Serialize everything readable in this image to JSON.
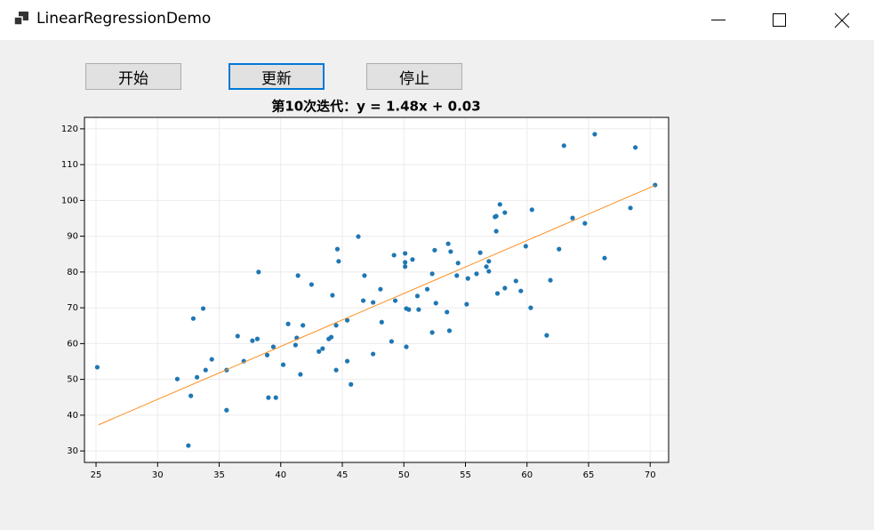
{
  "window": {
    "title": "LinearRegressionDemo"
  },
  "buttons": [
    "开始",
    "更新",
    "停止"
  ],
  "chart_data": {
    "type": "scatter",
    "title": "第10次迭代：y = 1.48x + 0.03",
    "xlim": [
      24.06,
      71.5
    ],
    "ylim": [
      26.8,
      123.2
    ],
    "xticks": [
      25,
      30,
      35,
      40,
      45,
      50,
      55,
      60,
      65,
      70
    ],
    "yticks": [
      30,
      40,
      50,
      60,
      70,
      80,
      90,
      100,
      110,
      120
    ],
    "grid": true,
    "series": [
      {
        "type": "scatter",
        "color": "#1f77b4",
        "x": [
          25.1,
          31.6,
          32.5,
          32.7,
          32.9,
          33.2,
          33.7,
          33.9,
          34.4,
          35.6,
          35.6,
          36.5,
          37.0,
          37.7,
          38.1,
          38.2,
          38.9,
          39.0,
          39.4,
          39.6,
          40.2,
          40.6,
          41.2,
          41.3,
          41.4,
          41.6,
          41.8,
          42.5,
          43.1,
          43.4,
          43.9,
          44.1,
          44.2,
          44.5,
          44.5,
          44.6,
          44.7,
          45.4,
          45.4,
          45.7,
          46.3,
          46.7,
          46.8,
          47.5,
          47.5,
          48.1,
          48.2,
          49.0,
          49.2,
          49.3,
          50.1,
          50.1,
          50.1,
          50.2,
          50.2,
          50.4,
          50.7,
          51.1,
          51.2,
          51.9,
          52.3,
          52.3,
          52.5,
          52.6,
          53.5,
          53.6,
          53.7,
          53.8,
          54.3,
          54.4,
          55.1,
          55.2,
          55.9,
          56.2,
          56.7,
          56.9,
          56.9,
          57.4,
          57.5,
          57.5,
          57.6,
          57.8,
          58.2,
          58.2,
          59.1,
          59.5,
          59.9,
          60.3,
          60.4,
          61.6,
          61.9,
          62.6,
          63.0,
          63.7,
          64.7,
          65.5,
          66.3,
          68.4,
          68.8,
          70.4
        ],
        "values": [
          53.4,
          50.1,
          31.5,
          45.4,
          67.0,
          50.6,
          69.8,
          52.6,
          55.6,
          52.6,
          41.4,
          62.1,
          55.1,
          60.8,
          61.3,
          80.0,
          56.8,
          44.9,
          59.1,
          44.9,
          54.1,
          65.5,
          59.6,
          61.6,
          79.0,
          51.4,
          65.1,
          76.5,
          57.8,
          58.6,
          61.3,
          61.8,
          73.5,
          65.1,
          52.6,
          86.4,
          83.0,
          55.1,
          66.5,
          48.6,
          89.9,
          72.0,
          79.0,
          71.5,
          57.1,
          75.2,
          66.0,
          60.6,
          84.7,
          72.0,
          85.2,
          81.5,
          82.7,
          69.8,
          59.1,
          69.5,
          83.5,
          73.3,
          69.5,
          75.2,
          79.5,
          63.1,
          86.1,
          71.3,
          68.8,
          87.9,
          63.6,
          85.7,
          79.0,
          82.5,
          71.0,
          78.2,
          79.5,
          85.4,
          81.5,
          83.0,
          80.2,
          95.4,
          95.6,
          91.4,
          74.0,
          98.9,
          96.6,
          75.5,
          77.5,
          74.7,
          87.2,
          70.0,
          97.4,
          62.3,
          77.7,
          86.4,
          115.3,
          95.1,
          93.6,
          118.5,
          83.9,
          97.9,
          114.8,
          104.3
        ]
      },
      {
        "type": "line",
        "color": "#ff8c1a",
        "x": [
          25.2,
          70.4
        ],
        "values": [
          37.3,
          104.2
        ]
      }
    ]
  }
}
